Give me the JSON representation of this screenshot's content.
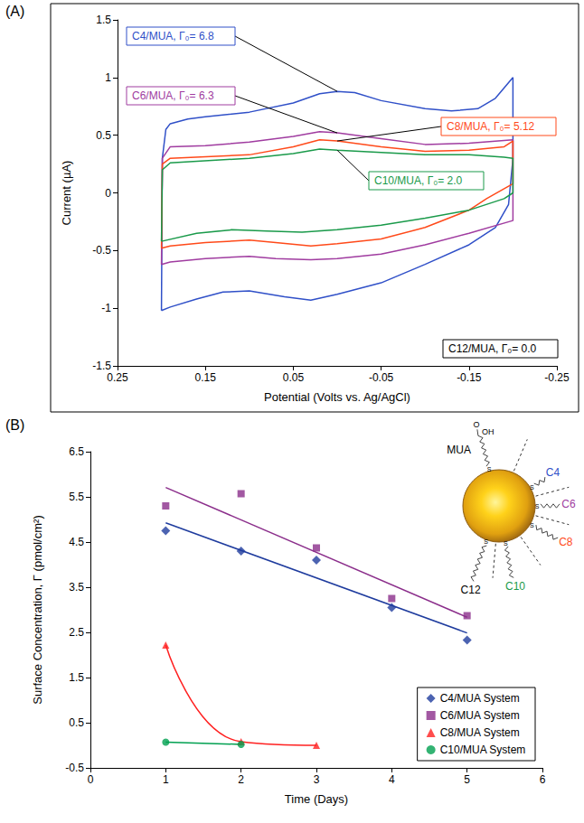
{
  "chart_data": [
    {
      "type": "line",
      "panel": "(A)",
      "x_label": "Potential (Volts vs. Ag/AgCl)",
      "y_label": "Current (µA)",
      "xlim": [
        0.25,
        -0.25
      ],
      "xticks": [
        0.25,
        0.15,
        0.05,
        -0.05,
        -0.15,
        -0.25
      ],
      "ylim": [
        -1.5,
        1.5
      ],
      "yticks": [
        -1.5,
        -1,
        -0.5,
        0,
        0.5,
        1,
        1.5
      ],
      "grid": false,
      "series": [
        {
          "name": "C4/MUA, Γ₀= 6.8",
          "color": "#3050c8",
          "x": [
            0.2,
            0.199,
            0.195,
            0.19,
            0.17,
            0.15,
            0.1,
            0.05,
            0.02,
            0.0,
            -0.02,
            -0.05,
            -0.1,
            -0.13,
            -0.16,
            -0.18,
            -0.2,
            -0.2,
            -0.195,
            -0.18,
            -0.15,
            -0.1,
            -0.05,
            0.0,
            0.03,
            0.06,
            0.1,
            0.13,
            0.16,
            0.19,
            0.2
          ],
          "values": [
            -1.02,
            0.3,
            0.55,
            0.6,
            0.64,
            0.66,
            0.7,
            0.78,
            0.86,
            0.88,
            0.87,
            0.8,
            0.73,
            0.71,
            0.73,
            0.82,
            1.0,
            0.3,
            -0.1,
            -0.3,
            -0.45,
            -0.62,
            -0.78,
            -0.88,
            -0.93,
            -0.9,
            -0.85,
            -0.86,
            -0.92,
            -0.99,
            -1.02
          ]
        },
        {
          "name": "C6/MUA, Γ₀= 6.3",
          "color": "#a03ca0",
          "x": [
            0.2,
            0.199,
            0.19,
            0.15,
            0.1,
            0.05,
            0.02,
            0.0,
            -0.05,
            -0.1,
            -0.15,
            -0.2,
            -0.2,
            -0.15,
            -0.1,
            -0.05,
            0.0,
            0.03,
            0.07,
            0.1,
            0.15,
            0.19,
            0.2
          ],
          "values": [
            -0.62,
            0.3,
            0.4,
            0.41,
            0.44,
            0.49,
            0.53,
            0.52,
            0.47,
            0.42,
            0.43,
            0.46,
            -0.24,
            -0.35,
            -0.45,
            -0.53,
            -0.57,
            -0.58,
            -0.57,
            -0.55,
            -0.57,
            -0.6,
            -0.62
          ]
        },
        {
          "name": "C8/MUA, Γ₀= 5.12",
          "color": "#ff4a1a",
          "x": [
            0.2,
            0.199,
            0.19,
            0.1,
            0.05,
            0.02,
            0.0,
            -0.05,
            -0.1,
            -0.15,
            -0.19,
            -0.2,
            -0.2,
            -0.17,
            -0.15,
            -0.1,
            -0.05,
            0.0,
            0.03,
            0.07,
            0.1,
            0.15,
            0.19,
            0.2
          ],
          "values": [
            -0.48,
            0.25,
            0.3,
            0.33,
            0.4,
            0.46,
            0.45,
            0.4,
            0.36,
            0.37,
            0.4,
            0.45,
            0.08,
            -0.05,
            -0.15,
            -0.3,
            -0.4,
            -0.44,
            -0.46,
            -0.43,
            -0.41,
            -0.43,
            -0.46,
            -0.48
          ]
        },
        {
          "name": "C10/MUA, Γ₀= 2.0",
          "color": "#1a9a4a",
          "x": [
            0.2,
            0.199,
            0.19,
            0.1,
            0.05,
            0.02,
            0.0,
            -0.05,
            -0.1,
            -0.15,
            -0.19,
            -0.2,
            -0.2,
            -0.19,
            -0.15,
            -0.1,
            -0.05,
            0.0,
            0.04,
            0.08,
            0.12,
            0.16,
            0.2
          ],
          "values": [
            -0.42,
            0.2,
            0.26,
            0.3,
            0.34,
            0.38,
            0.37,
            0.35,
            0.33,
            0.33,
            0.31,
            0.3,
            0.0,
            -0.05,
            -0.15,
            -0.22,
            -0.28,
            -0.32,
            -0.34,
            -0.33,
            -0.32,
            -0.35,
            -0.42
          ]
        }
      ],
      "annotations": [
        "C12/MUA, Γ₀= 0.0"
      ]
    },
    {
      "type": "line",
      "panel": "(B)",
      "x_label": "Time (Days)",
      "y_label": "Surface Concentration, Γ (pmol/cm²)",
      "xlim": [
        0,
        6
      ],
      "xticks": [
        0,
        1,
        2,
        3,
        4,
        5,
        6
      ],
      "ylim": [
        -0.5,
        6.5
      ],
      "yticks": [
        -0.5,
        0.5,
        1.5,
        2.5,
        3.5,
        4.5,
        5.5,
        6.5
      ],
      "grid": false,
      "legend": "lower right",
      "series": [
        {
          "name": "C4/MUA System",
          "color": "#1f3c9e",
          "marker": "diamond",
          "line_style": "trendline",
          "x": [
            1,
            2,
            3,
            4,
            5
          ],
          "values": [
            4.75,
            4.3,
            4.1,
            3.05,
            2.33
          ]
        },
        {
          "name": "C6/MUA System",
          "color": "#8b2e8b",
          "marker": "square",
          "line_style": "trendline",
          "x": [
            1,
            2,
            3,
            4,
            5
          ],
          "values": [
            5.3,
            5.57,
            4.37,
            3.25,
            2.87
          ]
        },
        {
          "name": "C8/MUA System",
          "color": "#ff2020",
          "marker": "triangle",
          "line_style": "smooth",
          "x": [
            1,
            2,
            3
          ],
          "values": [
            2.22,
            0.08,
            0.0
          ]
        },
        {
          "name": "C10/MUA System",
          "color": "#00a050",
          "marker": "circle",
          "line_style": "solid",
          "x": [
            1,
            2
          ],
          "values": [
            0.07,
            0.02
          ]
        }
      ],
      "schematic": {
        "anchor": "S",
        "head": [
          "O",
          "OH"
        ],
        "chains": [
          {
            "label": "MUA",
            "color": "#000000"
          },
          {
            "label": "C4",
            "color": "#3050c8"
          },
          {
            "label": "C6",
            "color": "#a03ca0"
          },
          {
            "label": "C8",
            "color": "#ff4a1a"
          },
          {
            "label": "C10",
            "color": "#1a9a4a"
          },
          {
            "label": "C12",
            "color": "#000000"
          }
        ]
      }
    }
  ]
}
